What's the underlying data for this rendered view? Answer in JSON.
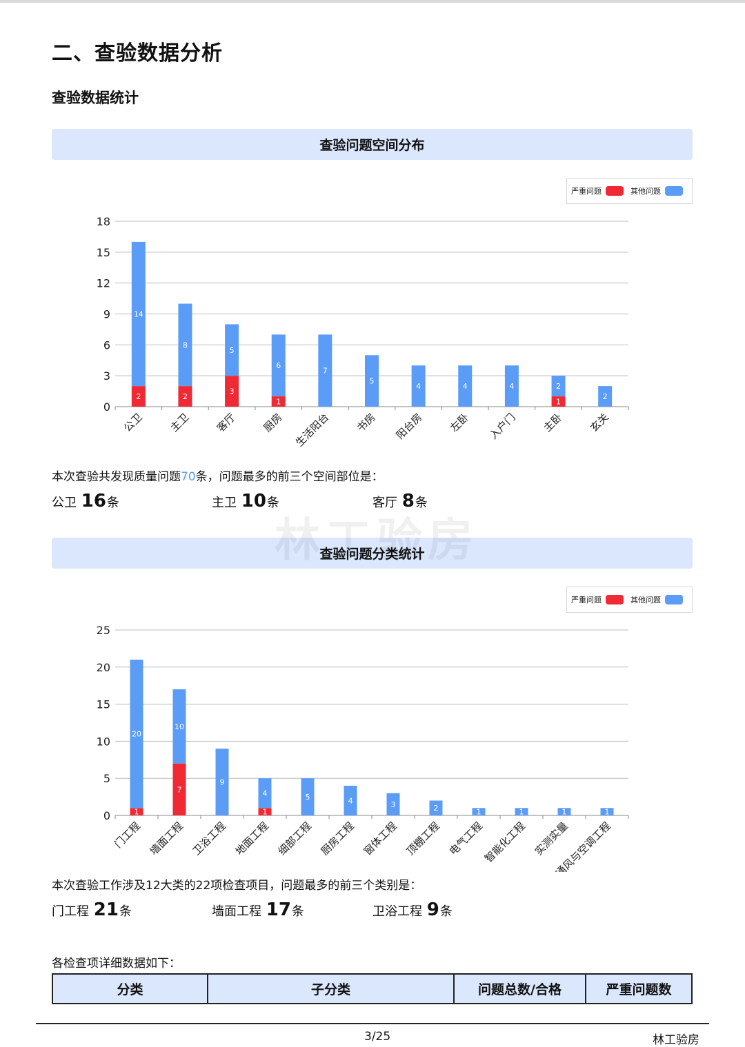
{
  "section_title": "二、查验数据分析",
  "subsection_title": "查验数据统计",
  "watermark": "林工验房",
  "legend": {
    "severe": "严重问题",
    "other": "其他问题",
    "severe_color": "#ef2a35",
    "other_color": "#5b9cf6"
  },
  "space": {
    "band_title": "查验问题空间分布",
    "summary_prefix": "本次查验共发现质量问题",
    "summary_total": "70",
    "summary_suffix": "条，问题最多的前三个空间部位是：",
    "top": [
      {
        "name": "公卫",
        "count": "16",
        "unit": "条"
      },
      {
        "name": "主卫",
        "count": "10",
        "unit": "条"
      },
      {
        "name": "客厅",
        "count": "8",
        "unit": "条"
      }
    ]
  },
  "category": {
    "band_title": "查验问题分类统计",
    "summary": "本次查验工作涉及12大类的22项检查项目，问题最多的前三个类别是：",
    "top": [
      {
        "name": "门工程",
        "count": "21",
        "unit": "条"
      },
      {
        "name": "墙面工程",
        "count": "17",
        "unit": "条"
      },
      {
        "name": "卫浴工程",
        "count": "9",
        "unit": "条"
      }
    ]
  },
  "table_intro": "各检查项详细数据如下：",
  "table_headers": [
    "分类",
    "子分类",
    "问题总数/合格",
    "严重问题数"
  ],
  "footer": {
    "page": "3/25",
    "brand": "林工验房"
  },
  "chart_data": [
    {
      "type": "bar",
      "stacked": true,
      "title": "查验问题空间分布",
      "categories": [
        "公卫",
        "主卫",
        "客厅",
        "厨房",
        "生活阳台",
        "书房",
        "阳台房",
        "左卧",
        "入户门",
        "主卧",
        "玄关"
      ],
      "series": [
        {
          "name": "严重问题",
          "values": [
            2,
            2,
            3,
            1,
            0,
            0,
            0,
            0,
            0,
            1,
            0
          ]
        },
        {
          "name": "其他问题",
          "values": [
            14,
            8,
            5,
            6,
            7,
            5,
            4,
            4,
            4,
            2,
            2
          ]
        }
      ],
      "yticks": [
        0,
        3,
        6,
        9,
        12,
        15,
        18
      ],
      "ylim": [
        0,
        18
      ],
      "grid": true,
      "legend": "top-right"
    },
    {
      "type": "bar",
      "stacked": true,
      "title": "查验问题分类统计",
      "categories": [
        "门工程",
        "墙面工程",
        "卫浴工程",
        "地面工程",
        "细部工程",
        "厨房工程",
        "窗体工程",
        "顶棚工程",
        "电气工程",
        "智能化工程",
        "实测实量",
        "通风与空调工程"
      ],
      "series": [
        {
          "name": "严重问题",
          "values": [
            1,
            7,
            0,
            1,
            0,
            0,
            0,
            0,
            0,
            0,
            0,
            0
          ]
        },
        {
          "name": "其他问题",
          "values": [
            20,
            10,
            9,
            4,
            5,
            4,
            3,
            2,
            1,
            1,
            1,
            1
          ]
        }
      ],
      "yticks": [
        0,
        5,
        10,
        15,
        20,
        25
      ],
      "ylim": [
        0,
        25
      ],
      "grid": true,
      "legend": "top-right"
    }
  ]
}
